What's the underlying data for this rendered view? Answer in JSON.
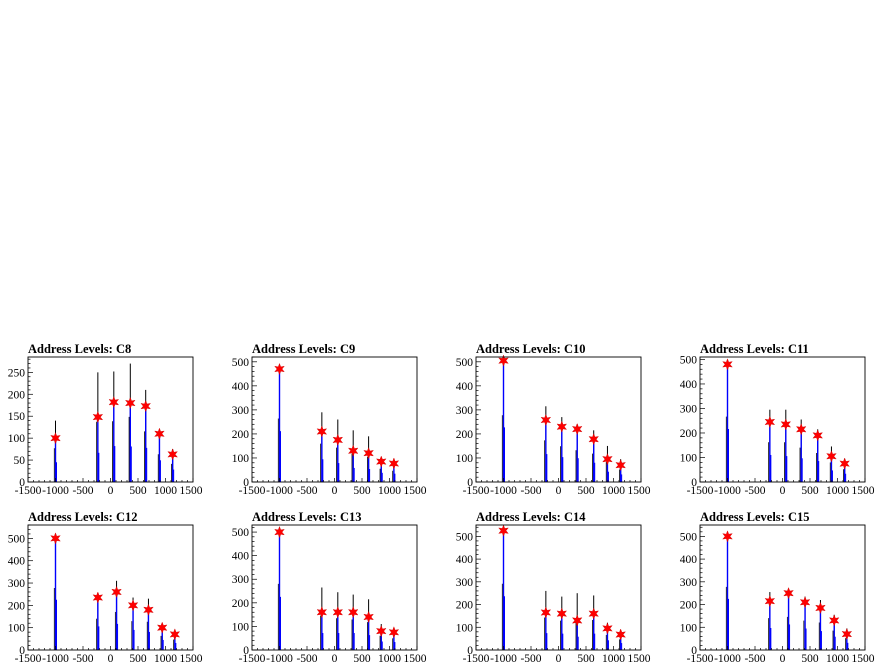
{
  "colors": {
    "histogram": "#000000",
    "fit": "#0000ff",
    "marker": "#ff0000",
    "frame": "#000000"
  },
  "chart_data": [
    {
      "type": "bar",
      "title": "Address Levels: C8",
      "xlim": [
        -1500,
        1500
      ],
      "ylim": [
        0,
        285
      ],
      "xticks": [
        "-1500",
        "-1000",
        "-500",
        "0",
        "500",
        "1000",
        "1500"
      ],
      "yticks": [
        0,
        50,
        100,
        150,
        200,
        250
      ],
      "peaks": [
        {
          "x": -1000,
          "raw": 140,
          "fit": 100
        },
        {
          "x": -230,
          "raw": 250,
          "fit": 148
        },
        {
          "x": 60,
          "raw": 252,
          "fit": 182
        },
        {
          "x": 360,
          "raw": 270,
          "fit": 180
        },
        {
          "x": 640,
          "raw": 210,
          "fit": 173
        },
        {
          "x": 890,
          "raw": 115,
          "fit": 110
        },
        {
          "x": 1130,
          "raw": 75,
          "fit": 63
        }
      ]
    },
    {
      "type": "bar",
      "title": "Address Levels: C9",
      "xlim": [
        -1500,
        1500
      ],
      "ylim": [
        0,
        520
      ],
      "xticks": [
        "-1500",
        "-1000",
        "-500",
        "0",
        "500",
        "1000",
        "1500"
      ],
      "yticks": [
        0,
        100,
        200,
        300,
        400,
        500
      ],
      "peaks": [
        {
          "x": -1000,
          "raw": 480,
          "fit": 470
        },
        {
          "x": -230,
          "raw": 290,
          "fit": 210
        },
        {
          "x": 60,
          "raw": 260,
          "fit": 175
        },
        {
          "x": 340,
          "raw": 215,
          "fit": 130
        },
        {
          "x": 620,
          "raw": 190,
          "fit": 120
        },
        {
          "x": 850,
          "raw": 100,
          "fit": 85
        },
        {
          "x": 1080,
          "raw": 85,
          "fit": 77
        }
      ]
    },
    {
      "type": "bar",
      "title": "Address Levels: C10",
      "xlim": [
        -1500,
        1500
      ],
      "ylim": [
        0,
        520
      ],
      "xticks": [
        "-1500",
        "-1000",
        "-500",
        "0",
        "500",
        "1000",
        "1500"
      ],
      "yticks": [
        0,
        100,
        200,
        300,
        400,
        500
      ],
      "peaks": [
        {
          "x": -1000,
          "raw": 505,
          "fit": 505
        },
        {
          "x": -230,
          "raw": 315,
          "fit": 258
        },
        {
          "x": 60,
          "raw": 270,
          "fit": 230
        },
        {
          "x": 340,
          "raw": 240,
          "fit": 220
        },
        {
          "x": 640,
          "raw": 215,
          "fit": 178
        },
        {
          "x": 890,
          "raw": 150,
          "fit": 95
        },
        {
          "x": 1130,
          "raw": 95,
          "fit": 70
        }
      ]
    },
    {
      "type": "bar",
      "title": "Address Levels: C11",
      "xlim": [
        -1500,
        1500
      ],
      "ylim": [
        0,
        510
      ],
      "xticks": [
        "-1500",
        "-1000",
        "-500",
        "0",
        "500",
        "1000",
        "1500"
      ],
      "yticks": [
        0,
        100,
        200,
        300,
        400,
        500
      ],
      "peaks": [
        {
          "x": -1000,
          "raw": 485,
          "fit": 480
        },
        {
          "x": -230,
          "raw": 295,
          "fit": 245
        },
        {
          "x": 60,
          "raw": 295,
          "fit": 235
        },
        {
          "x": 340,
          "raw": 255,
          "fit": 215
        },
        {
          "x": 640,
          "raw": 215,
          "fit": 190
        },
        {
          "x": 890,
          "raw": 145,
          "fit": 105
        },
        {
          "x": 1130,
          "raw": 95,
          "fit": 75
        }
      ]
    },
    {
      "type": "bar",
      "title": "Address Levels: C12",
      "xlim": [
        -1500,
        1500
      ],
      "ylim": [
        0,
        560
      ],
      "xticks": [
        "-1500",
        "-1000",
        "-500",
        "0",
        "500",
        "1000",
        "1500"
      ],
      "yticks": [
        0,
        100,
        200,
        300,
        400,
        500
      ],
      "peaks": [
        {
          "x": -1000,
          "raw": 505,
          "fit": 500
        },
        {
          "x": -230,
          "raw": 255,
          "fit": 235
        },
        {
          "x": 110,
          "raw": 310,
          "fit": 260
        },
        {
          "x": 410,
          "raw": 235,
          "fit": 200
        },
        {
          "x": 690,
          "raw": 230,
          "fit": 180
        },
        {
          "x": 940,
          "raw": 115,
          "fit": 100
        },
        {
          "x": 1170,
          "raw": 85,
          "fit": 70
        }
      ]
    },
    {
      "type": "bar",
      "title": "Address Levels: C13",
      "xlim": [
        -1500,
        1500
      ],
      "ylim": [
        0,
        530
      ],
      "xticks": [
        "-1500",
        "-1000",
        "-500",
        "0",
        "500",
        "1000",
        "1500"
      ],
      "yticks": [
        0,
        100,
        200,
        300,
        400,
        500
      ],
      "peaks": [
        {
          "x": -1000,
          "raw": 510,
          "fit": 500
        },
        {
          "x": -230,
          "raw": 265,
          "fit": 160
        },
        {
          "x": 60,
          "raw": 245,
          "fit": 160
        },
        {
          "x": 340,
          "raw": 235,
          "fit": 160
        },
        {
          "x": 620,
          "raw": 215,
          "fit": 140
        },
        {
          "x": 850,
          "raw": 110,
          "fit": 80
        },
        {
          "x": 1080,
          "raw": 90,
          "fit": 75
        }
      ]
    },
    {
      "type": "bar",
      "title": "Address Levels: C14",
      "xlim": [
        -1500,
        1500
      ],
      "ylim": [
        0,
        550
      ],
      "xticks": [
        "-1500",
        "-1000",
        "-500",
        "0",
        "500",
        "1000",
        "1500"
      ],
      "yticks": [
        0,
        100,
        200,
        300,
        400,
        500
      ],
      "peaks": [
        {
          "x": -1000,
          "raw": 530,
          "fit": 525
        },
        {
          "x": -230,
          "raw": 260,
          "fit": 165
        },
        {
          "x": 60,
          "raw": 235,
          "fit": 160
        },
        {
          "x": 340,
          "raw": 250,
          "fit": 130
        },
        {
          "x": 640,
          "raw": 240,
          "fit": 160
        },
        {
          "x": 890,
          "raw": 120,
          "fit": 95
        },
        {
          "x": 1130,
          "raw": 85,
          "fit": 68
        }
      ]
    },
    {
      "type": "bar",
      "title": "Address Levels: C15",
      "xlim": [
        -1500,
        1500
      ],
      "ylim": [
        0,
        550
      ],
      "xticks": [
        "-1500",
        "-1000",
        "-500",
        "0",
        "500",
        "1000",
        "1500"
      ],
      "yticks": [
        0,
        100,
        200,
        300,
        400,
        500
      ],
      "peaks": [
        {
          "x": -1000,
          "raw": 505,
          "fit": 500
        },
        {
          "x": -230,
          "raw": 255,
          "fit": 215
        },
        {
          "x": 110,
          "raw": 265,
          "fit": 250
        },
        {
          "x": 410,
          "raw": 235,
          "fit": 210
        },
        {
          "x": 690,
          "raw": 220,
          "fit": 185
        },
        {
          "x": 940,
          "raw": 155,
          "fit": 130
        },
        {
          "x": 1170,
          "raw": 95,
          "fit": 70
        }
      ]
    }
  ]
}
